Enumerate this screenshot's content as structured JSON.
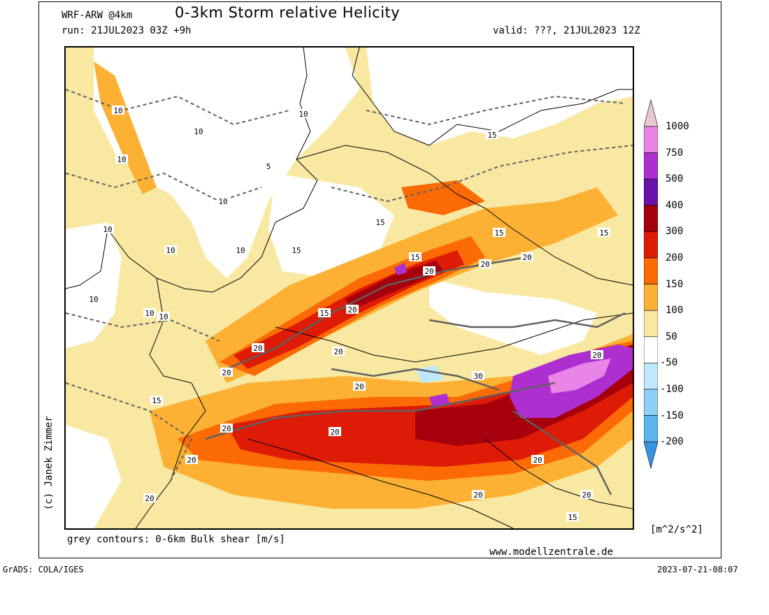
{
  "header": {
    "model": "WRF-ARW @4km",
    "title": "0-3km Storm relative Helicity",
    "run": "run: 21JUL2023 03Z +9h",
    "valid": "valid: ???, 21JUL2023 12Z"
  },
  "footer": {
    "contours_note": "grey contours: 0-6km Bulk shear [m/s]",
    "website": "www.modellzentrale.de",
    "units": "[m^2/s^2]",
    "grads": "GrADS: COLA/IGES",
    "timestamp": "2023-07-21-08:07"
  },
  "author": "(c) Janek Zimmer",
  "colorbar": {
    "labels": [
      "1000",
      "750",
      "500",
      "400",
      "300",
      "200",
      "150",
      "100",
      "50",
      "-50",
      "-100",
      "-150",
      "-200"
    ],
    "colors": [
      "#e9c9d1",
      "#e985e7",
      "#ad2fd0",
      "#6a12aa",
      "#a5000c",
      "#dd1b06",
      "#fb6a05",
      "#fcb135",
      "#f8e8a2",
      "#ffffff",
      "#bfe9fb",
      "#8fd0f6",
      "#5cb4ef",
      "#3993e4"
    ]
  },
  "contour_labels": [
    "5",
    "10",
    "15",
    "20",
    "30"
  ],
  "map_colors": {
    "pale": "#f8e8a2",
    "orange_light": "#fcb135",
    "orange": "#fb6a05",
    "red": "#dd1b06",
    "darkred": "#a5000c",
    "purple": "#ad2fd0",
    "pink": "#e985e7",
    "contour": "#606060",
    "border": "#000000"
  }
}
